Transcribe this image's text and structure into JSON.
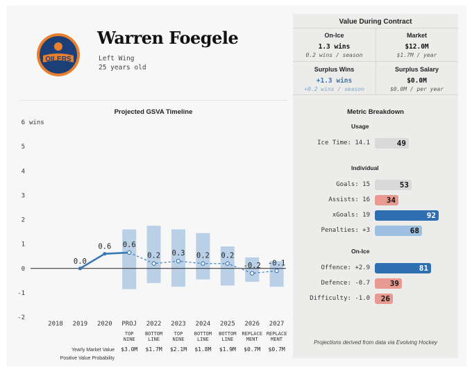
{
  "player": {
    "name": "Warren Foegele",
    "position": "Left Wing",
    "age": "25 years old",
    "team_logo_text": "OILERS"
  },
  "colors": {
    "line_blue": "#3a78b5",
    "band_blue": "#a9c6e2",
    "bar_gray": "#d9d9d9",
    "bar_red": "#e89a90",
    "bar_light_blue": "#9dbfe0",
    "bar_dark_blue": "#2f6fb1",
    "logo_navy": "#1c3f77",
    "logo_orange": "#e77f2e"
  },
  "value_during_contract": {
    "title": "Value During Contract",
    "on_ice": {
      "label": "On-Ice",
      "value": "1.3 wins",
      "sub": "0.2 wins / season"
    },
    "market": {
      "label": "Market",
      "value": "$12.0M",
      "sub": "$1.7M / year"
    },
    "surplus_wins": {
      "label": "Surplus Wins",
      "value": "+1.3 wins",
      "sub": "+0.2 wins / season"
    },
    "surplus_salary": {
      "label": "Surplus Salary",
      "value": "$0.0M",
      "sub": "$0.0M / per year"
    }
  },
  "metric_breakdown": {
    "title": "Metric Breakdown",
    "groups": [
      {
        "title": "Usage",
        "items": [
          {
            "label": "Ice Time: 14.1",
            "value": 49,
            "color": "gray"
          }
        ]
      },
      {
        "title": "Individual",
        "items": [
          {
            "label": "Goals: 15",
            "value": 53,
            "color": "gray"
          },
          {
            "label": "Assists: 16",
            "value": 34,
            "color": "red"
          },
          {
            "label": "xGoals: 19",
            "value": 92,
            "color": "dark_blue"
          },
          {
            "label": "Penalties: +3",
            "value": 68,
            "color": "light_blue"
          }
        ]
      },
      {
        "title": "On-Ice",
        "items": [
          {
            "label": "Offence: +2.9",
            "value": 81,
            "color": "dark_blue"
          },
          {
            "label": "Defence: -0.7",
            "value": 39,
            "color": "red"
          },
          {
            "label": "Difficulty: -1.0",
            "value": 26,
            "color": "red"
          }
        ]
      }
    ],
    "footnote": "Projections derived from data via Evolving Hockey"
  },
  "chart_data": {
    "type": "line",
    "title": "Projected GSVA Timeline",
    "y_unit": "wins",
    "ylim": [
      -2,
      6
    ],
    "yticks": [
      -2,
      -1,
      0,
      1,
      2,
      3,
      4,
      5,
      6
    ],
    "categories": [
      "2018",
      "2019",
      "2020",
      "PROJ",
      "2022",
      "2023",
      "2024",
      "2025",
      "2026",
      "2027"
    ],
    "actual": [
      {
        "x": "2019",
        "y": 0.0,
        "label": "0.0"
      },
      {
        "x": "2020",
        "y": 0.6,
        "label": "0.6"
      },
      {
        "x": "PROJ",
        "y": 0.65,
        "label": "0.6"
      }
    ],
    "projected": [
      {
        "x": "PROJ",
        "y": 0.65,
        "label": "0.6",
        "low": -0.85,
        "high": 1.6,
        "role": "TOP NINE",
        "market_value": "$3.0M"
      },
      {
        "x": "2022",
        "y": 0.2,
        "label": "0.2",
        "low": -0.6,
        "high": 1.75,
        "role": "BOTTOM LINE",
        "market_value": "$1.7M"
      },
      {
        "x": "2023",
        "y": 0.3,
        "label": "0.3",
        "low": -0.75,
        "high": 1.6,
        "role": "TOP NINE",
        "market_value": "$2.1M"
      },
      {
        "x": "2024",
        "y": 0.2,
        "label": "0.2",
        "low": -0.45,
        "high": 1.45,
        "role": "BOTTOM LINE",
        "market_value": "$1.8M"
      },
      {
        "x": "2025",
        "y": 0.2,
        "label": "0.2",
        "low": -0.7,
        "high": 0.9,
        "role": "BOTTOM LINE",
        "market_value": "$1.9M"
      },
      {
        "x": "2026",
        "y": -0.2,
        "label": "-0.2",
        "low": -0.55,
        "high": 0.45,
        "role": "REPLACEMENT",
        "market_value": "$0.7M"
      },
      {
        "x": "2027",
        "y": -0.1,
        "label": "-0.1",
        "low": -0.75,
        "high": 0.3,
        "role": "REPLACEMENT",
        "market_value": "$0.7M"
      }
    ],
    "row_labels": {
      "market_value": "Yearly Market Value",
      "probability": "Positive Value Probability"
    },
    "grid": false
  }
}
